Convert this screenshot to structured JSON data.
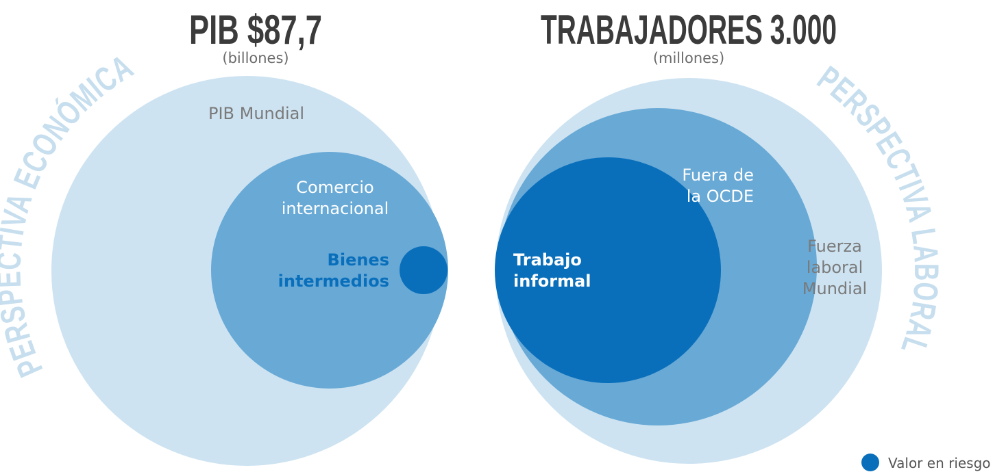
{
  "left": {
    "title": "PIB $87,7",
    "unit": "(billones)",
    "perspective": "PERSPECTIVA ECONÓMICA",
    "outer": [
      "PIB Mundial"
    ],
    "middle": [
      "Comercio",
      "internacional"
    ],
    "inner": [
      "Bienes",
      "intermedios"
    ]
  },
  "right": {
    "title": "TRABAJADORES 3.000",
    "unit": "(millones)",
    "perspective": "PERSPECTIVA LABORAL",
    "outer": [
      "Fuerza",
      "laboral",
      "Mundial"
    ],
    "middle": [
      "Fuera de",
      "la OCDE"
    ],
    "inner": [
      "Trabajo",
      "informal"
    ]
  },
  "legend": "Valor en riesgo"
}
